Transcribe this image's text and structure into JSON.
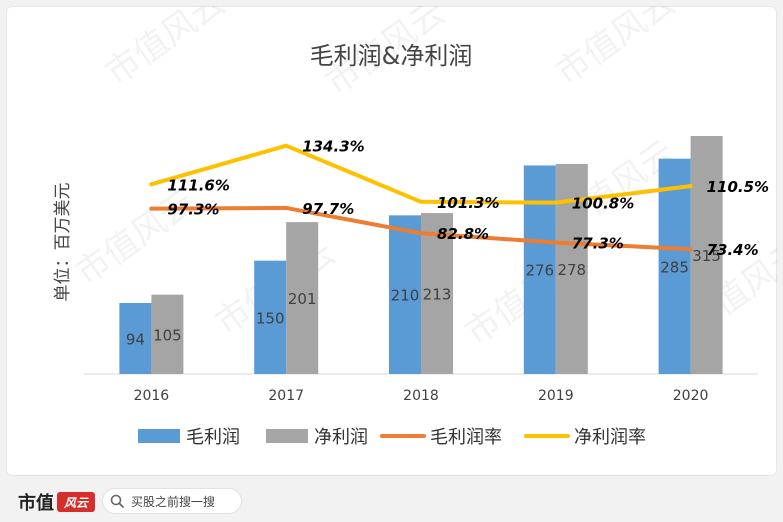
{
  "chart_data": {
    "type": "bar+line",
    "title": "毛利润&净利润",
    "ylabel": "单位：百万美元",
    "categories": [
      "2016",
      "2017",
      "2018",
      "2019",
      "2020"
    ],
    "bar_series": [
      {
        "name": "毛利润",
        "color": "#5b9bd5",
        "values": [
          94,
          150,
          210,
          276,
          285
        ],
        "labels": [
          "94",
          "150",
          "210",
          "276",
          "285"
        ]
      },
      {
        "name": "净利润",
        "color": "#a5a5a5",
        "values": [
          105,
          201,
          213,
          278,
          315
        ],
        "labels": [
          "105",
          "201",
          "213",
          "278",
          "315"
        ]
      }
    ],
    "line_series": [
      {
        "name": "毛利润率",
        "color": "#ed7d31",
        "values": [
          97.3,
          97.7,
          82.8,
          77.3,
          73.4
        ],
        "labels": [
          "97.3%",
          "97.7%",
          "82.8%",
          "77.3%",
          "73.4%"
        ]
      },
      {
        "name": "净利润率",
        "color": "#ffc000",
        "values": [
          111.6,
          134.3,
          101.3,
          100.8,
          110.5
        ],
        "labels": [
          "111.6%",
          "134.3%",
          "101.3%",
          "100.8%",
          "110.5%"
        ]
      }
    ],
    "bar_axis_range": [
      0,
      360
    ],
    "line_axis_range": [
      0,
      160
    ],
    "grid": false,
    "legend_position": "bottom"
  },
  "watermark": "市值风云",
  "footer": {
    "brand": "市值",
    "logo_text": "风云",
    "search_placeholder": "买股之前搜一搜",
    "icon": "search-icon"
  }
}
